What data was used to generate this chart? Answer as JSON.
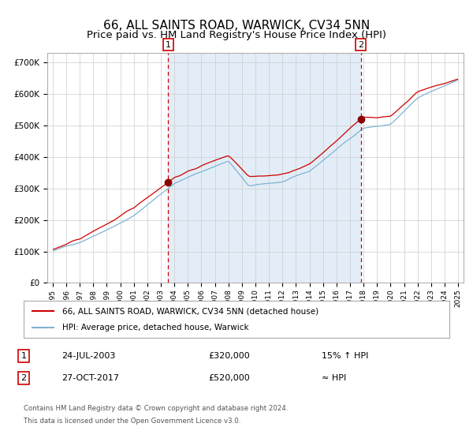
{
  "title": "66, ALL SAINTS ROAD, WARWICK, CV34 5NN",
  "subtitle": "Price paid vs. HM Land Registry's House Price Index (HPI)",
  "legend_entries": [
    "66, ALL SAINTS ROAD, WARWICK, CV34 5NN (detached house)",
    "HPI: Average price, detached house, Warwick"
  ],
  "transaction1": {
    "date": "24-JUL-2003",
    "price": 320000,
    "label": "1",
    "note": "15% ↑ HPI"
  },
  "transaction2": {
    "date": "27-OCT-2017",
    "price": 520000,
    "label": "2",
    "note": "≈ HPI"
  },
  "hpi_color": "#7fb3d3",
  "price_color": "#cc0000",
  "dot_color": "#8b0000",
  "vline_color": "#cc0000",
  "bg_color": "#dce9f5",
  "grid_color": "#cccccc",
  "title_fontsize": 11,
  "subtitle_fontsize": 9.5,
  "yticks": [
    0,
    100000,
    200000,
    300000,
    400000,
    500000,
    600000,
    700000
  ],
  "ytick_labels": [
    "£0",
    "£100K",
    "£200K",
    "£300K",
    "£400K",
    "£500K",
    "£600K",
    "£700K"
  ],
  "footer_line1": "Contains HM Land Registry data © Crown copyright and database right 2024.",
  "footer_line2": "This data is licensed under the Open Government Licence v3.0."
}
